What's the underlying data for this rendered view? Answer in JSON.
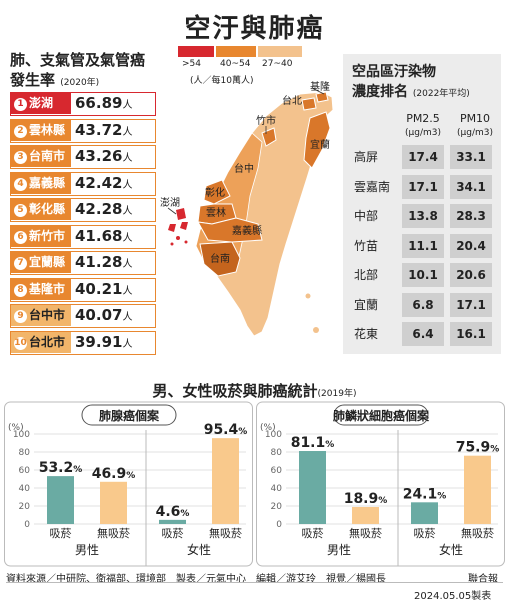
{
  "header": {
    "title": "空汙與肺癌"
  },
  "incidence": {
    "title_line1": "肺、支氣管及氣管癌",
    "title_line2": "發生率",
    "year": "(2020年)",
    "unit": "人",
    "legend": {
      "unit": "(人／每10萬人)",
      "bins": [
        {
          "label": ">54",
          "color": "#d7282f"
        },
        {
          "label": "40~54",
          "color": "#e8872f"
        },
        {
          "label": "27~40",
          "color": "#f3c28d"
        }
      ]
    },
    "ranking": [
      {
        "rank": "1",
        "name": "澎湖",
        "value": "66.89"
      },
      {
        "rank": "2",
        "name": "雲林縣",
        "value": "43.72"
      },
      {
        "rank": "3",
        "name": "台南市",
        "value": "43.26"
      },
      {
        "rank": "4",
        "name": "嘉義縣",
        "value": "42.42"
      },
      {
        "rank": "5",
        "name": "彰化縣",
        "value": "42.28"
      },
      {
        "rank": "6",
        "name": "新竹市",
        "value": "41.68"
      },
      {
        "rank": "7",
        "name": "宜蘭縣",
        "value": "41.28"
      },
      {
        "rank": "8",
        "name": "基隆市",
        "value": "40.21"
      },
      {
        "rank": "9",
        "name": "台中市",
        "value": "40.07"
      },
      {
        "rank": "10",
        "name": "台北市",
        "value": "39.91"
      }
    ]
  },
  "map": {
    "labels": {
      "keelung": "基隆",
      "taipei": "台北",
      "hsinchu": "竹市",
      "yilan": "宜蘭",
      "taichung": "台中",
      "changhua": "彰化",
      "penghu": "澎湖",
      "yunlin": "雲林",
      "chiayi": "嘉義縣",
      "tainan": "台南"
    },
    "colors": {
      "high": "#d7282f",
      "mid": "#e8872f",
      "low": "#f3c28d"
    }
  },
  "pollution": {
    "title_line1": "空品區汙染物",
    "title_line2": "濃度排名",
    "year": "(2022年平均)",
    "col1": "PM2.5",
    "col2": "PM10",
    "col_unit": "(μg/m3)",
    "rows": [
      {
        "region": "高屏",
        "pm25": "17.4",
        "pm10": "33.1"
      },
      {
        "region": "雲嘉南",
        "pm25": "17.1",
        "pm10": "34.1"
      },
      {
        "region": "中部",
        "pm25": "13.8",
        "pm10": "28.3"
      },
      {
        "region": "竹苗",
        "pm25": "11.1",
        "pm10": "20.4"
      },
      {
        "region": "北部",
        "pm25": "10.1",
        "pm10": "20.6"
      },
      {
        "region": "宜蘭",
        "pm25": "6.8",
        "pm10": "17.1"
      },
      {
        "region": "花東",
        "pm25": "6.4",
        "pm10": "16.1"
      }
    ]
  },
  "stats": {
    "title": "男、女性吸菸與肺癌統計",
    "year": "(2019年)"
  },
  "chart_data": [
    {
      "type": "bar",
      "title": "肺腺癌個案",
      "ylabel": "(%)",
      "ylim": [
        0,
        100
      ],
      "yticks": [
        0,
        20,
        40,
        60,
        80,
        100
      ],
      "grid": true,
      "value_suffix": "%",
      "categories": [
        "吸菸",
        "無吸菸",
        "吸菸",
        "無吸菸"
      ],
      "groups": [
        "男性",
        "女性"
      ],
      "values": [
        53.2,
        46.9,
        4.6,
        95.4
      ],
      "colors": [
        "#6aaba3",
        "#f9c98c",
        "#6aaba3",
        "#f9c98c"
      ]
    },
    {
      "type": "bar",
      "title": "肺鱗狀細胞癌個案",
      "ylabel": "(%)",
      "ylim": [
        0,
        100
      ],
      "yticks": [
        0,
        20,
        40,
        60,
        80,
        100
      ],
      "grid": true,
      "value_suffix": "%",
      "categories": [
        "吸菸",
        "無吸菸",
        "吸菸",
        "無吸菸"
      ],
      "groups": [
        "男性",
        "女性"
      ],
      "values": [
        81.1,
        18.9,
        24.1,
        75.9
      ],
      "colors": [
        "#6aaba3",
        "#f9c98c",
        "#6aaba3",
        "#f9c98c"
      ]
    }
  ],
  "footer": {
    "credits": "資料來源／中研院、衛福部、環境部　製表／元氣中心　編輯／游艾玲　視覺／楊國長",
    "brand": "聯合報",
    "date": "2024.05.05製表"
  }
}
